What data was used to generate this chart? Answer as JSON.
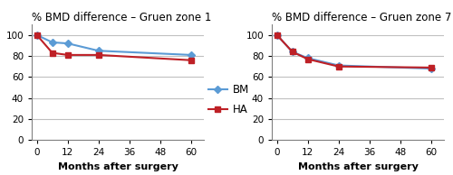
{
  "zone1": {
    "title": "% BMD difference – Gruen zone 1",
    "bm_x": [
      0,
      6,
      12,
      24,
      60
    ],
    "bm_y": [
      100,
      93,
      92,
      85,
      81
    ],
    "ha_x": [
      0,
      6,
      12,
      24,
      60
    ],
    "ha_y": [
      100,
      83,
      81,
      81,
      76
    ]
  },
  "zone7": {
    "title": "% BMD difference – Gruen zone 7",
    "bm_x": [
      0,
      6,
      12,
      24,
      60
    ],
    "bm_y": [
      100,
      84,
      78,
      71,
      68
    ],
    "ha_x": [
      0,
      6,
      12,
      24,
      60
    ],
    "ha_y": [
      100,
      84,
      77,
      70,
      69
    ]
  },
  "bm_color": "#5B9BD5",
  "ha_color": "#BE2026",
  "bg_color": "#FFFFFF",
  "xlabel": "Months after surgery",
  "xticks": [
    0,
    12,
    24,
    36,
    48,
    60
  ],
  "yticks": [
    0,
    20,
    40,
    60,
    80,
    100
  ],
  "ylim": [
    0,
    110
  ],
  "xlim": [
    -2,
    65
  ],
  "legend_labels": [
    "BM",
    "HA"
  ],
  "bm_marker": "D",
  "ha_marker": "s",
  "title_fontsize": 8.5,
  "label_fontsize": 8,
  "tick_fontsize": 7.5,
  "legend_fontsize": 8.5,
  "grid_color": "#C0C0C0",
  "linewidth": 1.5,
  "markersize": 4
}
